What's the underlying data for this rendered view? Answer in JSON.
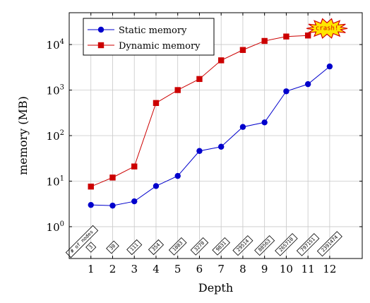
{
  "chart_data": {
    "type": "line",
    "xlabel": "Depth",
    "ylabel": "memory (MB)",
    "yscale": "log",
    "ylim": [
      0.2,
      50000
    ],
    "xlim": [
      0,
      13.5
    ],
    "grid": true,
    "legend_position": "top-left",
    "x": [
      1,
      2,
      3,
      4,
      5,
      6,
      7,
      8,
      9,
      10,
      11,
      12
    ],
    "x_tick_labels": [
      "1",
      "2",
      "3",
      "4",
      "5",
      "6",
      "7",
      "8",
      "9",
      "10",
      "11",
      "12"
    ],
    "y_tick_labels": [
      {
        "base": "10",
        "exp": "0",
        "value": 1
      },
      {
        "base": "10",
        "exp": "1",
        "value": 10
      },
      {
        "base": "10",
        "exp": "2",
        "value": 100
      },
      {
        "base": "10",
        "exp": "3",
        "value": 1000
      },
      {
        "base": "10",
        "exp": "4",
        "value": 10000
      }
    ],
    "node_counts_label": "# of nodes",
    "node_counts": [
      "3",
      "30",
      "111",
      "354",
      "1083",
      "3270",
      "9831",
      "29514",
      "88563",
      "265710",
      "797151",
      "2391474"
    ],
    "crash_label": "crash!",
    "series": [
      {
        "name": "Static memory",
        "color": "#0000cc",
        "marker": "circle",
        "values": [
          3.0,
          2.9,
          3.6,
          7.8,
          13,
          46,
          57,
          155,
          195,
          940,
          1350,
          3300
        ]
      },
      {
        "name": "Dynamic memory",
        "color": "#cc0000",
        "marker": "square",
        "values": [
          7.6,
          12,
          21,
          520,
          1000,
          1750,
          4500,
          7600,
          12000,
          15000,
          15800,
          null
        ]
      }
    ]
  }
}
